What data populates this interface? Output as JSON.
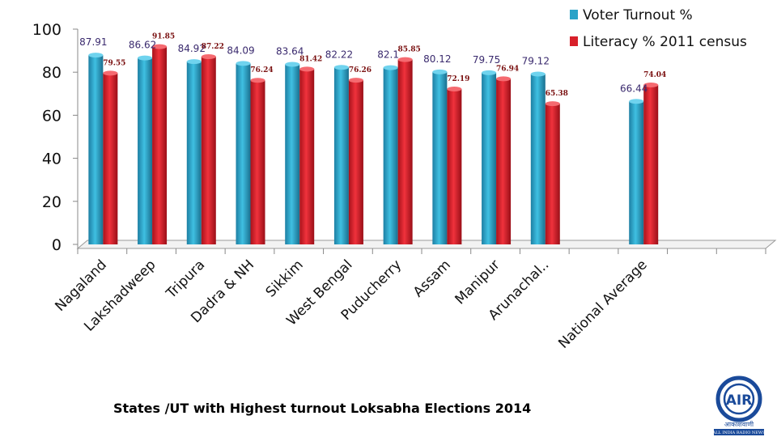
{
  "chart_data": {
    "type": "bar",
    "title": "States /UT with Highest turnout  Loksabha Elections 2014",
    "categories": [
      "Nagaland",
      "Lakshadweep",
      "Tripura",
      "Dadra & NH",
      "Sikkim",
      "West Bengal",
      "Puducherry",
      "Assam",
      "Manipur",
      "Arunachal..",
      "",
      "National Average",
      "",
      ""
    ],
    "series": [
      {
        "name": "Voter Turnout %",
        "color": "#2aa3c8",
        "values": [
          87.91,
          86.62,
          84.92,
          84.09,
          83.64,
          82.22,
          82.1,
          80.12,
          79.75,
          79.12,
          null,
          66.44,
          null,
          null
        ],
        "labels": [
          "87.91",
          "86.62",
          "84.92",
          "84.09",
          "83.64",
          "82.22",
          "82.1",
          "80.12",
          "79.75",
          "79.12",
          "",
          "66.44",
          "",
          ""
        ]
      },
      {
        "name": "Literacy % 2011 census",
        "color": "#d8202a",
        "values": [
          79.55,
          91.85,
          87.22,
          76.24,
          81.42,
          76.26,
          85.85,
          72.19,
          76.94,
          65.38,
          null,
          74.04,
          null,
          null
        ],
        "labels": [
          "79.55",
          "91.85",
          "87.22",
          "76.24",
          "81.42",
          "76.26",
          "85.85",
          "72.19",
          "76.94",
          "65.38",
          "",
          "74.04",
          "",
          ""
        ]
      }
    ],
    "ylim": [
      0,
      100
    ],
    "yticks": [
      "0",
      "20",
      "40",
      "60",
      "80",
      "100"
    ],
    "xlabel": "",
    "ylabel": "",
    "grid": false,
    "legend_position": "top-right"
  },
  "logo": {
    "emblem": "air-emblem",
    "letters": "AIR",
    "hindi_text": "आकाशवाणी",
    "caption": "ALL INDIA RADIO NEWS"
  }
}
